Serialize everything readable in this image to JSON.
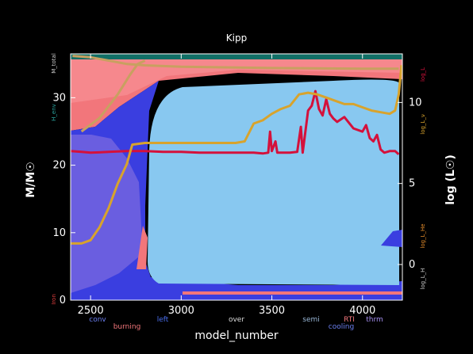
{
  "chart_data": {
    "type": "line",
    "title": "Kipp",
    "xlabel": "model_number",
    "ylabel_left": "M/M☉",
    "ylabel_right": "log (L☉)",
    "xlim": [
      2390,
      4220
    ],
    "ylim_left": [
      0,
      36.5
    ],
    "ylim_right": [
      -2.2,
      13.0
    ],
    "x_ticks": [
      2500,
      3000,
      3500,
      4000
    ],
    "y_ticks_left": [
      0,
      10,
      20,
      30
    ],
    "y_ticks_right": [
      0,
      5,
      10
    ],
    "legend_left": [
      "M_total",
      "H_env",
      "Iron"
    ],
    "legend_right": [
      "log_L",
      "log_L_ν",
      "log_L_He",
      "log_L_H"
    ],
    "region_labels": [
      "conv",
      "burning",
      "left",
      "over",
      "semi",
      "RTI",
      "cooling",
      "thrm"
    ],
    "series": [
      {
        "name": "log_L",
        "axis": "right",
        "color": "#d4113b",
        "points": [
          [
            2390,
            7.0
          ],
          [
            2450,
            6.95
          ],
          [
            2500,
            6.9
          ],
          [
            2600,
            6.95
          ],
          [
            2700,
            7.0
          ],
          [
            2800,
            7.0
          ],
          [
            2900,
            6.95
          ],
          [
            3000,
            6.95
          ],
          [
            3100,
            6.9
          ],
          [
            3200,
            6.9
          ],
          [
            3300,
            6.9
          ],
          [
            3400,
            6.9
          ],
          [
            3450,
            6.85
          ],
          [
            3480,
            6.9
          ],
          [
            3490,
            8.2
          ],
          [
            3500,
            7.0
          ],
          [
            3520,
            7.6
          ],
          [
            3530,
            6.9
          ],
          [
            3600,
            6.9
          ],
          [
            3640,
            6.95
          ],
          [
            3660,
            8.5
          ],
          [
            3670,
            6.9
          ],
          [
            3700,
            9.5
          ],
          [
            3720,
            9.8
          ],
          [
            3740,
            10.7
          ],
          [
            3760,
            9.6
          ],
          [
            3780,
            9.2
          ],
          [
            3800,
            10.2
          ],
          [
            3820,
            9.3
          ],
          [
            3840,
            9.0
          ],
          [
            3860,
            8.8
          ],
          [
            3900,
            9.1
          ],
          [
            3950,
            8.4
          ],
          [
            4000,
            8.2
          ],
          [
            4020,
            8.6
          ],
          [
            4040,
            7.8
          ],
          [
            4060,
            7.6
          ],
          [
            4080,
            8.0
          ],
          [
            4100,
            7.1
          ],
          [
            4120,
            6.9
          ],
          [
            4150,
            7.0
          ],
          [
            4180,
            7.0
          ],
          [
            4200,
            6.8
          ]
        ]
      },
      {
        "name": "log_L_ν",
        "axis": "right",
        "color": "#d8a32c",
        "points": [
          [
            2390,
            1.3
          ],
          [
            2450,
            1.3
          ],
          [
            2500,
            1.5
          ],
          [
            2550,
            2.3
          ],
          [
            2600,
            3.5
          ],
          [
            2650,
            5.0
          ],
          [
            2700,
            6.2
          ],
          [
            2730,
            7.4
          ],
          [
            2800,
            7.5
          ],
          [
            2900,
            7.5
          ],
          [
            3000,
            7.5
          ],
          [
            3100,
            7.5
          ],
          [
            3200,
            7.5
          ],
          [
            3300,
            7.5
          ],
          [
            3350,
            7.6
          ],
          [
            3400,
            8.7
          ],
          [
            3450,
            8.9
          ],
          [
            3500,
            9.3
          ],
          [
            3550,
            9.6
          ],
          [
            3600,
            9.8
          ],
          [
            3650,
            10.5
          ],
          [
            3700,
            10.6
          ],
          [
            3750,
            10.5
          ],
          [
            3800,
            10.3
          ],
          [
            3850,
            10.1
          ],
          [
            3900,
            9.9
          ],
          [
            3950,
            9.9
          ],
          [
            4000,
            9.7
          ],
          [
            4050,
            9.5
          ],
          [
            4100,
            9.4
          ],
          [
            4150,
            9.3
          ],
          [
            4180,
            9.5
          ],
          [
            4200,
            10.5
          ],
          [
            4215,
            12.3
          ]
        ]
      }
    ],
    "mass_tracks": [
      {
        "name": "M_total",
        "color": "#c8a060",
        "points": [
          [
            2400,
            36.2
          ],
          [
            2500,
            36.0
          ],
          [
            2600,
            35.5
          ],
          [
            2700,
            35.0
          ],
          [
            2800,
            34.8
          ],
          [
            3000,
            34.6
          ],
          [
            3500,
            34.4
          ],
          [
            4000,
            34.3
          ],
          [
            4200,
            34.3
          ]
        ]
      },
      {
        "name": "H_env",
        "color": "#c8a060",
        "points": [
          [
            2450,
            25.0
          ],
          [
            2550,
            27.0
          ],
          [
            2650,
            30.5
          ],
          [
            2720,
            33.5
          ],
          [
            2760,
            35.0
          ],
          [
            2800,
            35.5
          ]
        ]
      }
    ]
  }
}
